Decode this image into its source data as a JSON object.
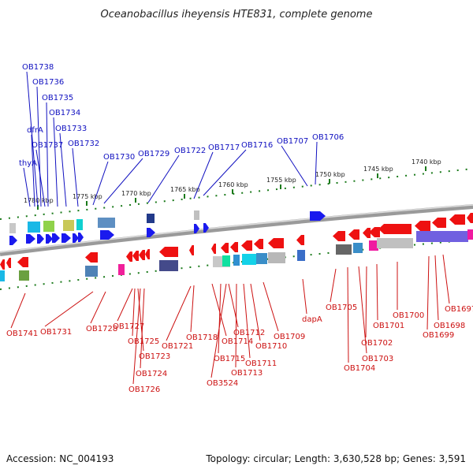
{
  "title": "Oceanobacillus iheyensis HTE831, complete genome",
  "footer": {
    "accession": "Accession: NC_004193",
    "summary": "Topology: circular; Length: 3,630,528 bp; Genes: 3,591"
  },
  "colors": {
    "forward_label": "#1010c0",
    "reverse_label": "#cc1010",
    "forward_gene": "#1a1aee",
    "reverse_gene": "#ee1111",
    "axis_ticks": "#1a7a1a",
    "backbone": "#7a7a7a"
  },
  "scale_ticks": [
    "1780 kbp",
    "1775 kbp",
    "1770 kbp",
    "1765 kbp",
    "1760 kbp",
    "1755 kbp",
    "1750 kbp",
    "1745 kbp",
    "1740 kbp"
  ],
  "forward_genes": [
    "OB1738",
    "OB1736",
    "OB1735",
    "OB1734",
    "dfrA",
    "OB1733",
    "OB1737",
    "OB1732",
    "thyA",
    "OB1730",
    "OB1729",
    "OB1722",
    "OB1717",
    "OB1716",
    "OB1707",
    "OB1706"
  ],
  "reverse_genes": [
    "OB1741",
    "OB1731",
    "OB1728",
    "OB1727",
    "OB1725",
    "OB1723",
    "OB1724",
    "OB1726",
    "OB1721",
    "OB1718",
    "OB1714",
    "OB1715",
    "OB3524",
    "OB1712",
    "OB1713",
    "OB1711",
    "OB1710",
    "OB1709",
    "dapA",
    "OB1705",
    "OB1704",
    "OB1703",
    "OB1702",
    "OB1701",
    "OB1700",
    "OB1699",
    "OB1698",
    "OB1697"
  ]
}
